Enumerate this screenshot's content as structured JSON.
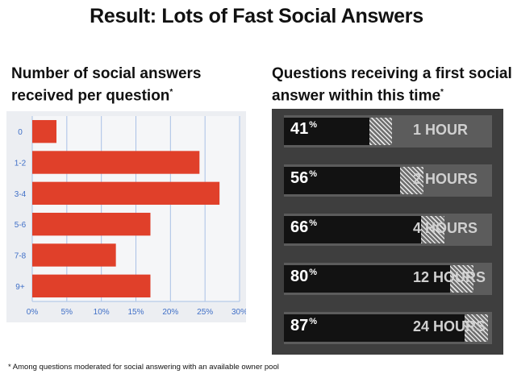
{
  "title": "Result: Lots of Fast Social Answers",
  "left_heading": {
    "text": "Number of social answers received per question",
    "mark": "*"
  },
  "right_heading": {
    "text": "Questions receiving a first social answer within this time",
    "mark": "*"
  },
  "footnote": "* Among questions moderated for social answering with an available owner pool",
  "colors": {
    "bar": "#e0402a",
    "bar_label": "#3f6fc7",
    "panel_bg": "#eceef2",
    "grid": "#a9c1e6",
    "time_panel_bg": "#3e3e3e"
  },
  "chart_data": [
    {
      "type": "bar",
      "orientation": "horizontal",
      "categories": [
        "0",
        "1-2",
        "3-4",
        "5-6",
        "7-8",
        "9+"
      ],
      "values": [
        3.5,
        24.2,
        27.1,
        17.1,
        12.1,
        17.1
      ],
      "ticks": [
        "0%",
        "5%",
        "10%",
        "15%",
        "20%",
        "25%",
        "30%"
      ],
      "xlim": [
        0,
        30
      ],
      "grid": true
    },
    {
      "type": "bar",
      "orientation": "horizontal",
      "categories": [
        "1 HOUR",
        "2 HOURS",
        "4 HOURS",
        "12 HOURS",
        "24 HOURS"
      ],
      "values": [
        41,
        56,
        66,
        80,
        87
      ],
      "value_labels": [
        "41",
        "56",
        "66",
        "80",
        "87"
      ],
      "unit": "%",
      "xlim": [
        0,
        100
      ]
    }
  ]
}
